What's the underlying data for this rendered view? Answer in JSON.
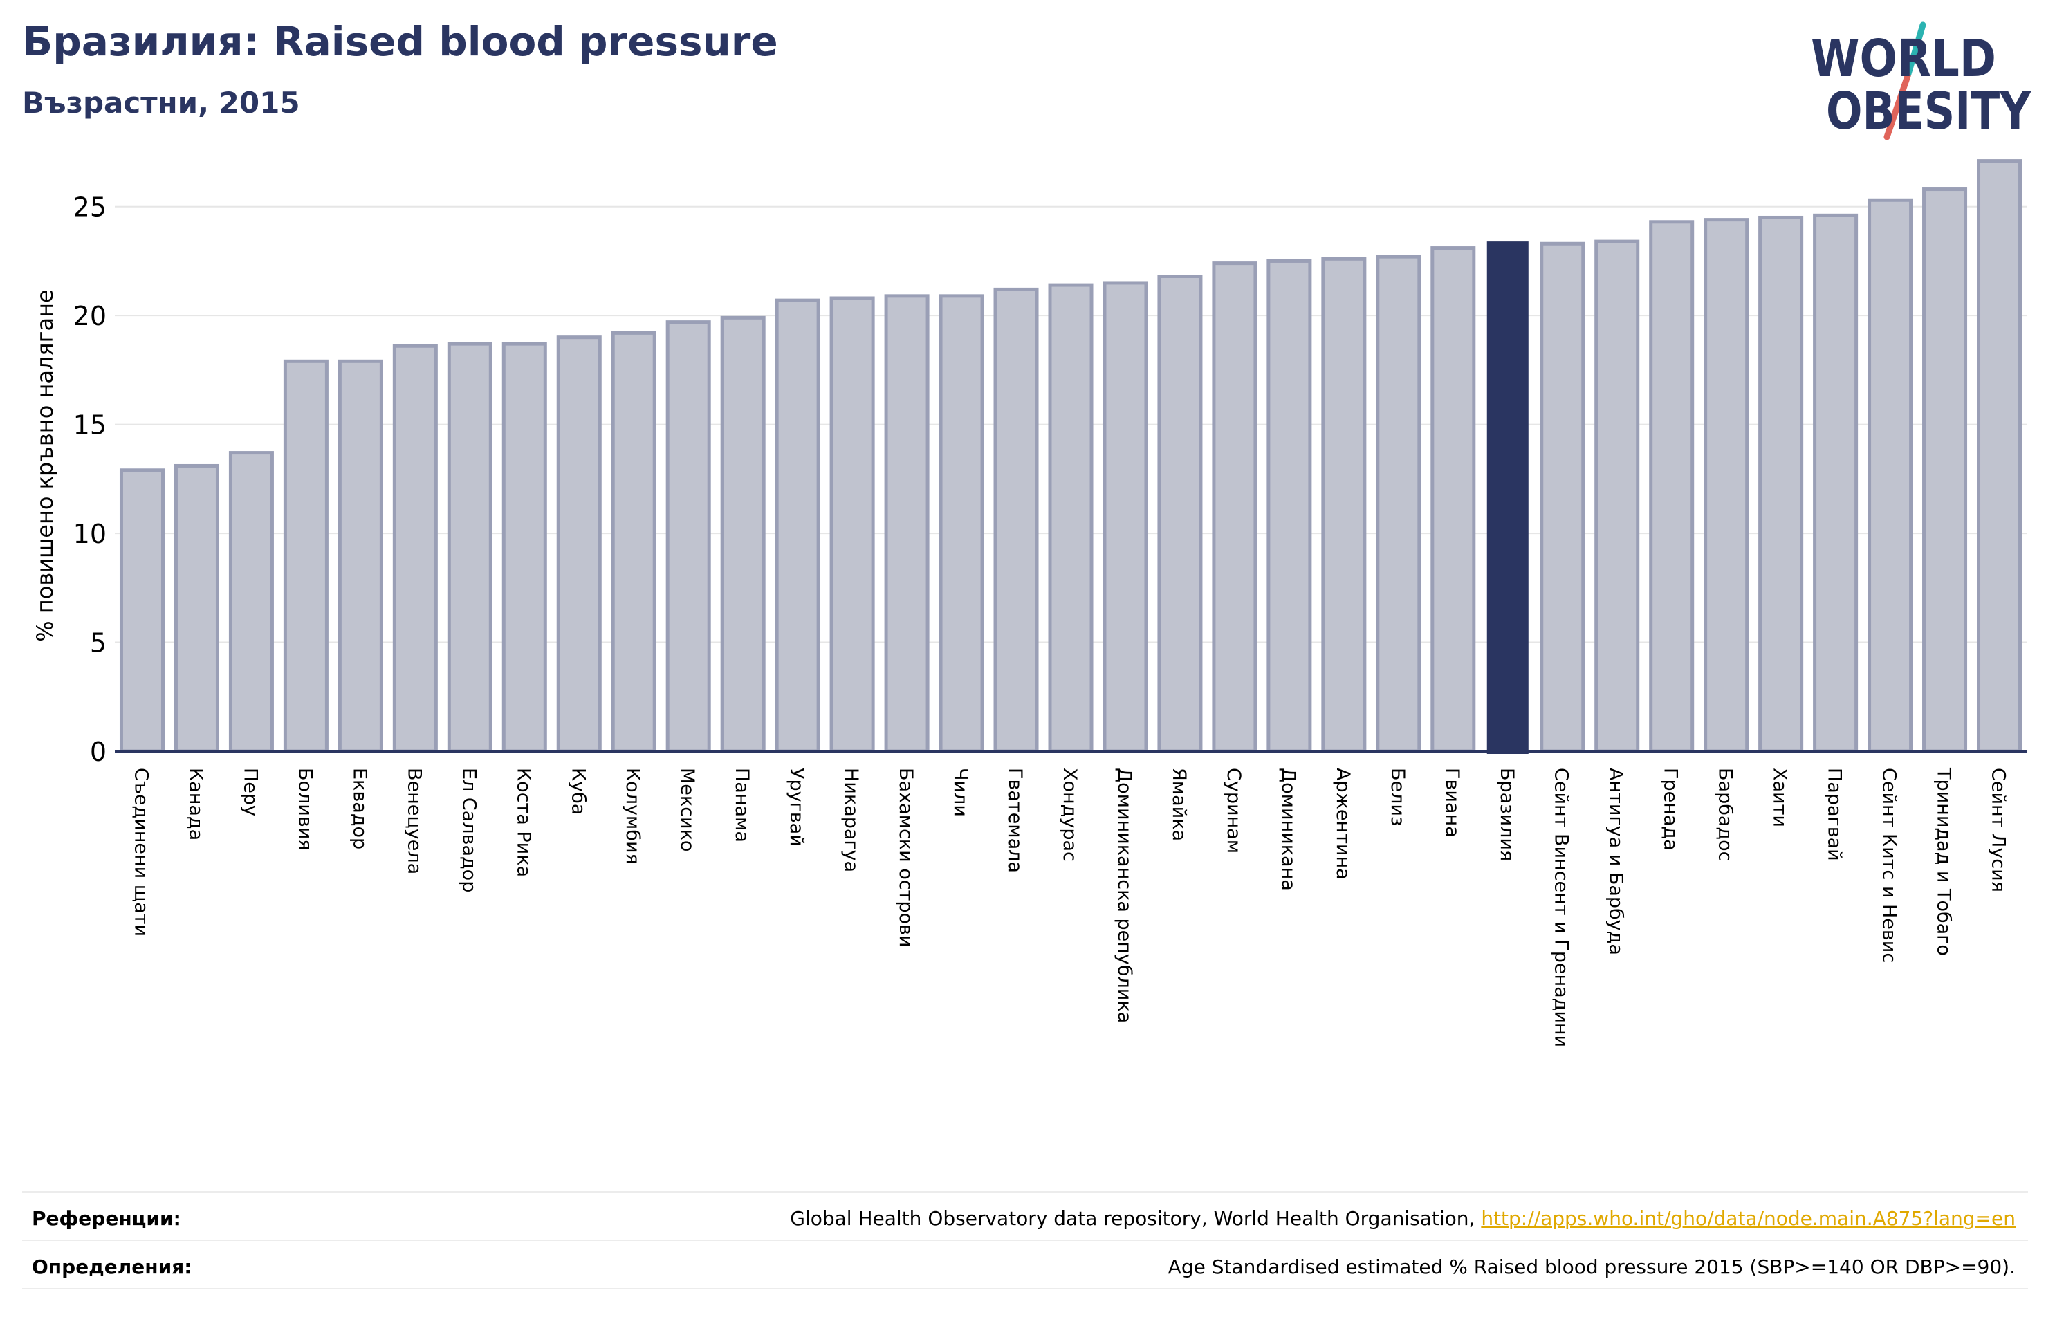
{
  "header": {
    "title": "Бразилия: Raised blood pressure",
    "subtitle": "Възрастни, 2015"
  },
  "logo": {
    "line1": "WORLD",
    "line2": "OBESITY",
    "colors": {
      "text": "#2a3561",
      "slash_teal": "#2bb3b1",
      "slash_red": "#e0645a"
    }
  },
  "chart_data": {
    "type": "bar",
    "title": "",
    "xlabel": "",
    "ylabel": "% повишено кръвно налягане",
    "ylim": [
      0,
      27.5
    ],
    "yticks": [
      0,
      5,
      10,
      15,
      20,
      25
    ],
    "grid": true,
    "highlight": "Бразилия",
    "colors": {
      "bar": "#c0c3cf",
      "bar_edge": "#9a9fb6",
      "highlight": "#2a3561",
      "grid": "#e6e6e6",
      "axis": "#2a3561"
    },
    "categories": [
      "Съединени щати",
      "Канада",
      "Перу",
      "Боливия",
      "Еквадор",
      "Венецуела",
      "Ел Салвадор",
      "Коста Рика",
      "Куба",
      "Колумбия",
      "Мексико",
      "Панама",
      "Уругвай",
      "Никарагуа",
      "Бахамски острови",
      "Чили",
      "Гватемала",
      "Хондурас",
      "Доминиканска република",
      "Ямайка",
      "Суринам",
      "Доминикана",
      "Аржентина",
      "Белиз",
      "Гвиана",
      "Бразилия",
      "Сейнт Винсент и Гренадини",
      "Антигуа и Барбуда",
      "Гренада",
      "Барбадос",
      "Хаити",
      "Парагвай",
      "Сейнт Китс и Невис",
      "Тринидад и Тобаго",
      "Сейнт Лусия"
    ],
    "values": [
      12.9,
      13.1,
      13.7,
      17.9,
      17.9,
      18.6,
      18.7,
      18.7,
      19.0,
      19.2,
      19.7,
      19.9,
      20.7,
      20.8,
      20.9,
      20.9,
      21.2,
      21.4,
      21.5,
      21.8,
      22.4,
      22.5,
      22.6,
      22.7,
      23.1,
      23.4,
      23.3,
      23.4,
      24.3,
      24.4,
      24.5,
      24.6,
      25.3,
      25.8,
      27.1
    ]
  },
  "footer": {
    "references_label": "Референции:",
    "references_text": "Global Health Observatory data repository, World Health Organisation, ",
    "references_link": "http://apps.who.int/gho/data/node.main.A875?lang=en",
    "definitions_label": "Определения:",
    "definitions_text": "Age Standardised estimated % Raised blood pressure 2015 (SBP>=140 OR DBP>=90)."
  }
}
